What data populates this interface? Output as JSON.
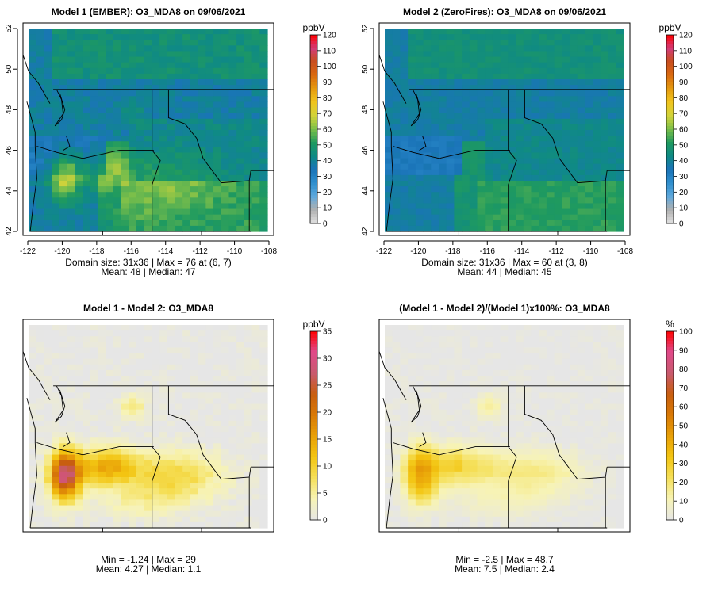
{
  "panels": [
    {
      "id": "p1",
      "title": "Model 1 (EMBER): O3_MDA8 on 09/06/2021",
      "unit": "ppbV",
      "scale": "o3",
      "colorbar": {
        "min": 0,
        "max": 120,
        "ticks": [
          0,
          10,
          20,
          30,
          40,
          50,
          60,
          70,
          80,
          90,
          100,
          110,
          120
        ]
      },
      "stats": [
        "Domain size: 31x36 | Max = 76 at (6, 7)",
        "Mean: 48 |  Median: 47"
      ],
      "x_ticks": [
        -122,
        -120,
        -118,
        -116,
        -114,
        -112,
        -110,
        -108
      ],
      "y_ticks": [
        42,
        44,
        46,
        48,
        50,
        52
      ],
      "show_axes": true
    },
    {
      "id": "p2",
      "title": "Model 2 (ZeroFires): O3_MDA8 on 09/06/2021",
      "unit": "ppbV",
      "scale": "o3",
      "colorbar": {
        "min": 0,
        "max": 120,
        "ticks": [
          0,
          10,
          20,
          30,
          40,
          50,
          60,
          70,
          80,
          90,
          100,
          110,
          120
        ]
      },
      "stats": [
        "Domain size: 31x36 | Max = 60 at (3, 8)",
        "Mean: 44 |  Median: 45"
      ],
      "x_ticks": [
        -122,
        -120,
        -118,
        -116,
        -114,
        -112,
        -110,
        -108
      ],
      "y_ticks": [
        42,
        44,
        46,
        48,
        50,
        52
      ],
      "show_axes": true
    },
    {
      "id": "p3",
      "title": "Model 1 - Model 2: O3_MDA8",
      "unit": "ppbV",
      "scale": "diff",
      "colorbar": {
        "min": 0,
        "max": 35,
        "ticks": [
          0,
          5,
          10,
          15,
          20,
          25,
          30,
          35
        ]
      },
      "stats": [
        "Min = -1.24 | Max = 29",
        "Mean: 4.27 |  Median: 1.1"
      ],
      "x_ticks": [],
      "y_ticks": [],
      "show_axes": false
    },
    {
      "id": "p4",
      "title": "(Model 1 - Model 2)/(Model 1)x100%: O3_MDA8",
      "unit": "%",
      "scale": "diff",
      "colorbar": {
        "min": 0,
        "max": 100,
        "ticks": [
          0,
          10,
          20,
          30,
          40,
          50,
          60,
          70,
          80,
          90,
          100
        ]
      },
      "stats": [
        "Min = -2.5 | Max = 48.7",
        "Mean: 7.5 |  Median: 2.4"
      ],
      "x_ticks": [],
      "y_ticks": [],
      "show_axes": false
    }
  ],
  "map": {
    "lon_range": [
      -122.5,
      -108
    ],
    "lat_range": [
      42,
      52
    ],
    "nx": 31,
    "ny": 36
  },
  "colors": {
    "o3": [
      "#e0e0e0",
      "#b0b0b0",
      "#5fa8dc",
      "#2f8fce",
      "#1a74b8",
      "#0f8a85",
      "#1f9a5f",
      "#7cbf4a",
      "#d2d33a",
      "#f0c41e",
      "#e59b10",
      "#d96a10",
      "#c84e1e",
      "#d23c78",
      "#ff0000"
    ],
    "diff": [
      "#e6e6e6",
      "#f7f3b5",
      "#f5e05a",
      "#f3c512",
      "#e8a008",
      "#d97a06",
      "#c85e10",
      "#c85a6e",
      "#e04a8a",
      "#ff0000"
    ],
    "map_border": "#000000"
  }
}
